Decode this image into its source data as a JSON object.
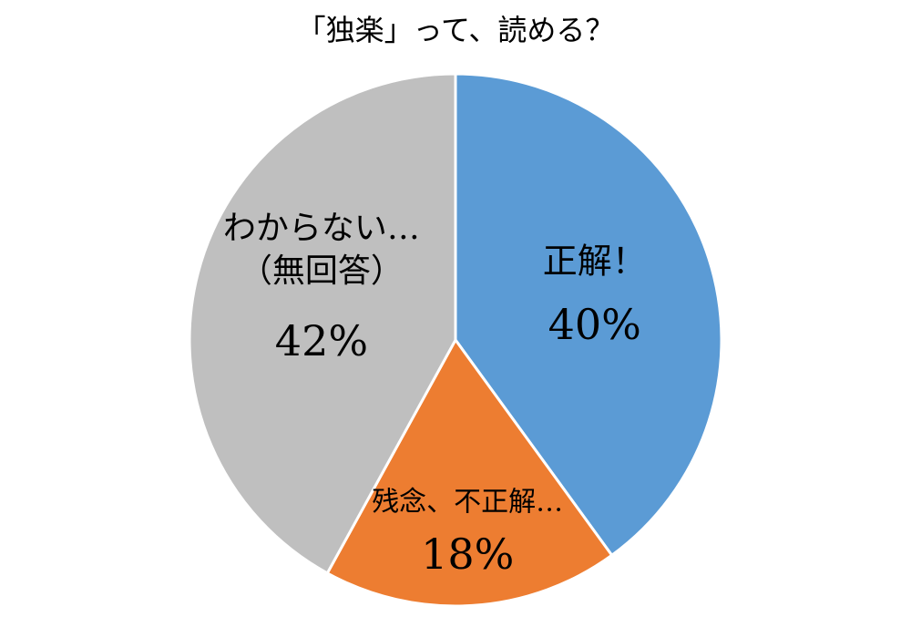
{
  "chart_data": {
    "type": "pie",
    "title": "「独楽」って、読める？",
    "categories": [
      "正解！",
      "残念、不正解…",
      "わからない…（無回答）"
    ],
    "values": [
      40,
      18,
      42
    ],
    "value_labels": [
      "40%",
      "18%",
      "42%"
    ],
    "colors": [
      "#5b9bd5",
      "#ed7d31",
      "#bfbfbf"
    ]
  }
}
